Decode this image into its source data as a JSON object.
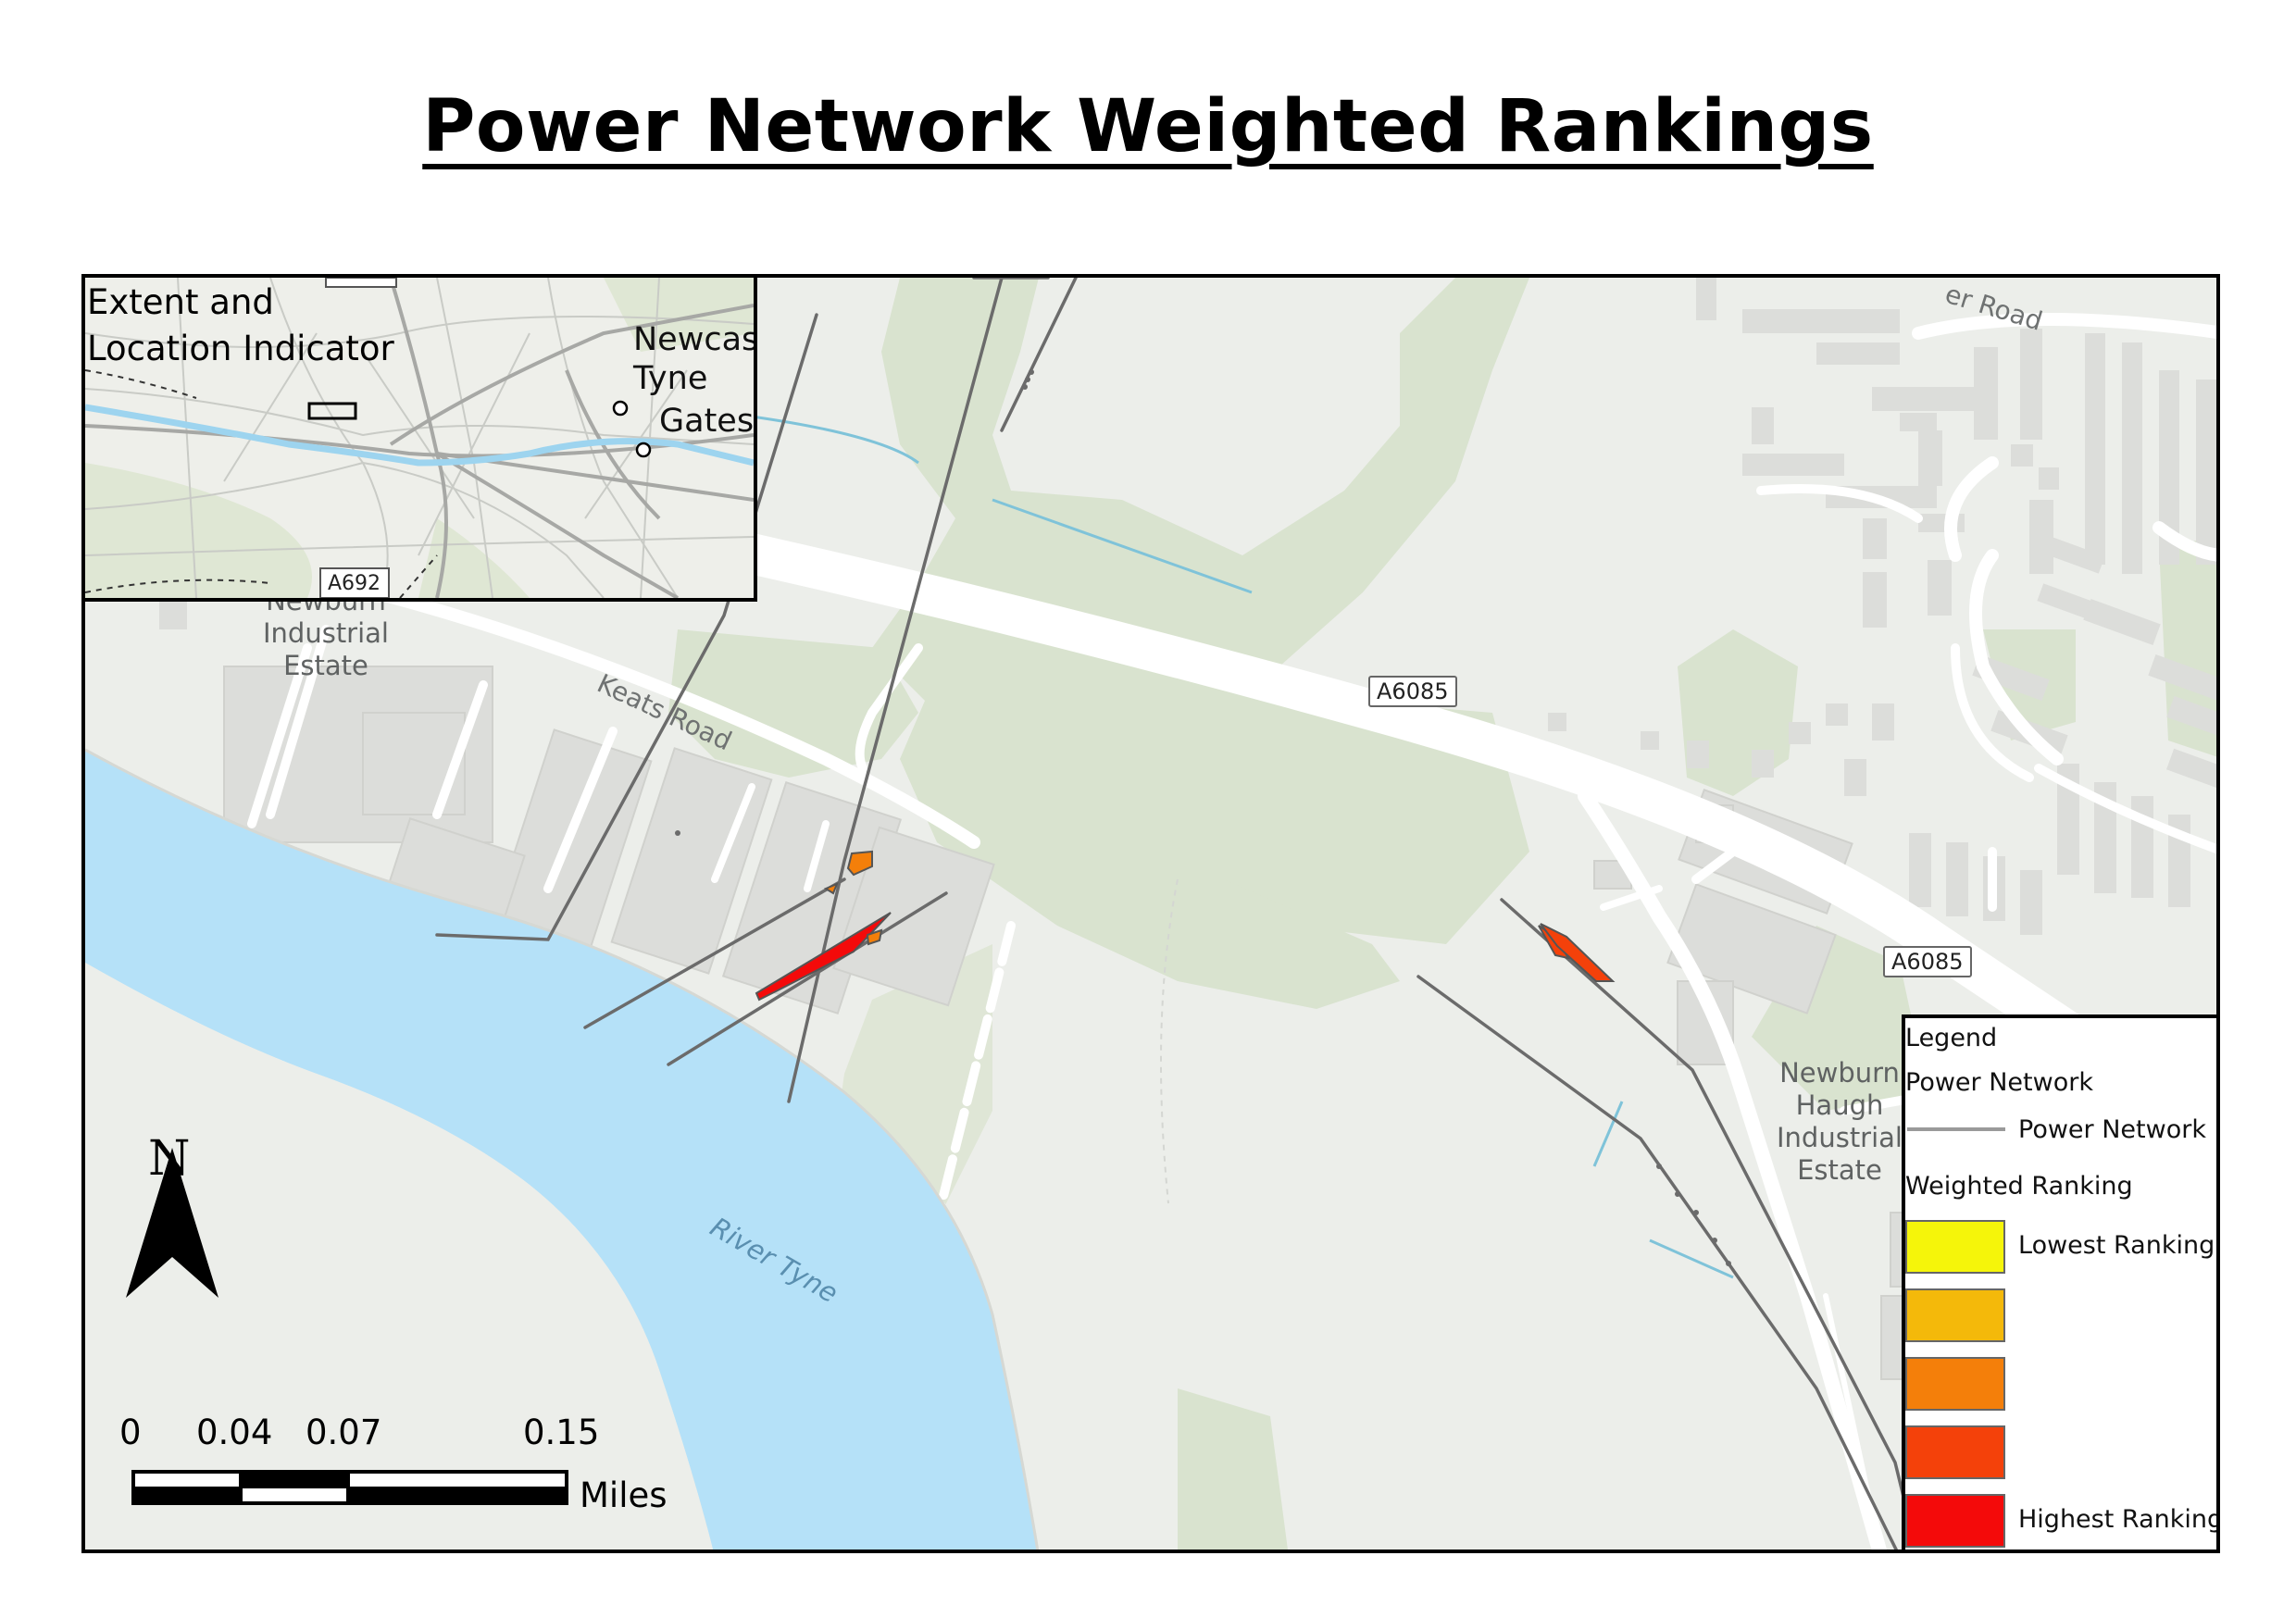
{
  "title": "Power Network Weighted Rankings",
  "map": {
    "road_labels": [
      "A6085",
      "A6085"
    ],
    "place_labels": [
      "Newburn\nIndustrial\nEstate",
      "Newburn\nHaugh\nIndustrial\nEstate"
    ],
    "street_labels": [
      "Keats Road",
      "er Road"
    ],
    "river_label": "River Tyne",
    "water_color": "#b5e1f8",
    "power_line_color": "#6b6b6b"
  },
  "inset": {
    "title": "Extent and\nLocation Indicator",
    "city_newcastle": "Newcas\nTyne",
    "city_gateshead": "Gates",
    "road_label": "A692"
  },
  "legend": {
    "heading": "Legend",
    "group_power": "Power Network",
    "power_item": "Power Network",
    "group_ranking": "Weighted Ranking",
    "lowest_label": "Lowest Ranking",
    "highest_label": "Highest Ranking",
    "ranking_colors": [
      "#f5f50a",
      "#f4b90a",
      "#f47f0a",
      "#f4410a",
      "#f40a0a"
    ]
  },
  "north_arrow": {
    "letter": "N"
  },
  "scale_bar": {
    "ticks": [
      "0",
      "0.04",
      "0.07",
      "0.15"
    ],
    "unit": "Miles"
  }
}
